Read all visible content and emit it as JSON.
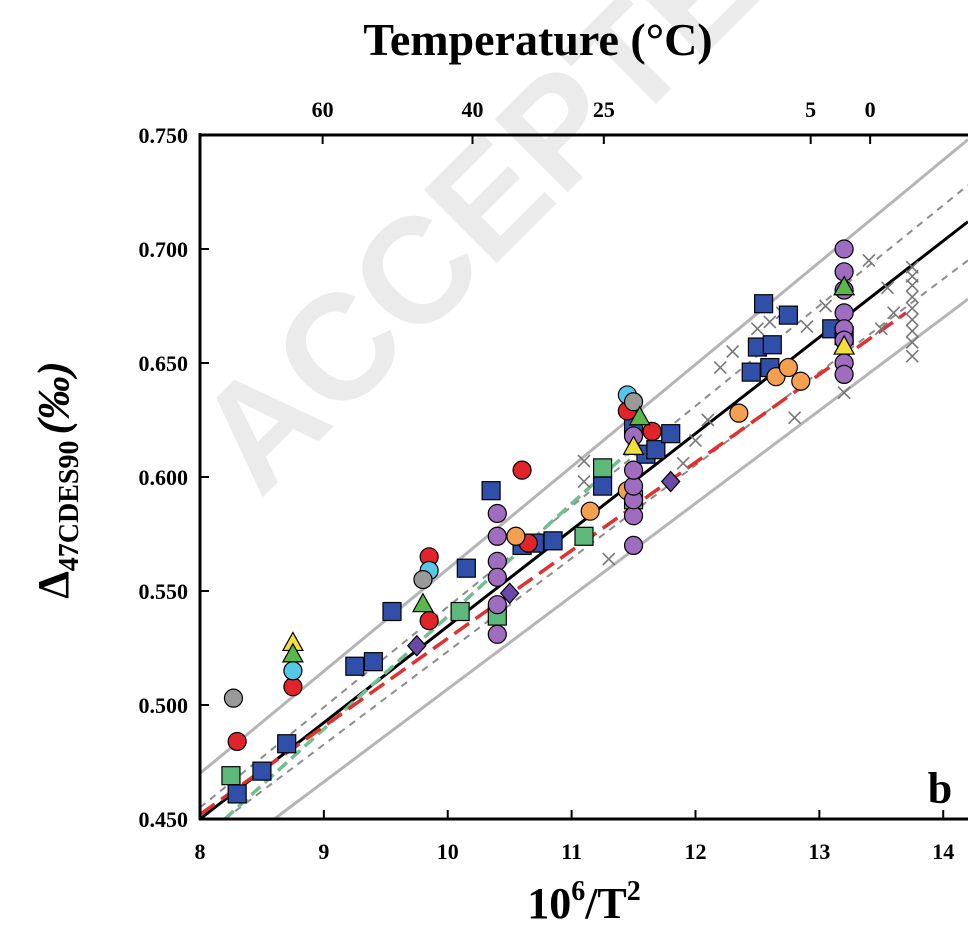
{
  "chart_data": {
    "type": "scatter",
    "panel_label": "b",
    "watermark": "ACCEPTED",
    "top_axis_title": "Temperature (°C)",
    "top_ticks": [
      {
        "label": "60",
        "x": 8.99
      },
      {
        "label": "40",
        "x": 10.2
      },
      {
        "label": "25",
        "x": 11.26
      },
      {
        "label": "5",
        "x": 12.93
      },
      {
        "label": "0",
        "x": 13.41
      }
    ],
    "ylabel_main": "Δ",
    "ylabel_sub": "47CDES90",
    "ylabel_units": "(‰)",
    "xlabel_base": "10",
    "xlabel_sup1": "6",
    "xlabel_mid": "/T",
    "xlabel_sup2": "2",
    "xlim": [
      8,
      14.2
    ],
    "ylim": [
      0.45,
      0.75
    ],
    "xticks": [
      {
        "label": "8",
        "v": 8
      },
      {
        "label": "9",
        "v": 9
      },
      {
        "label": "10",
        "v": 10
      },
      {
        "label": "11",
        "v": 11
      },
      {
        "label": "12",
        "v": 12
      },
      {
        "label": "13",
        "v": 13
      },
      {
        "label": "14",
        "v": 14
      }
    ],
    "yticks": [
      {
        "label": "0.450",
        "v": 0.45
      },
      {
        "label": "0.500",
        "v": 0.5
      },
      {
        "label": "0.550",
        "v": 0.55
      },
      {
        "label": "0.600",
        "v": 0.6
      },
      {
        "label": "0.650",
        "v": 0.65
      },
      {
        "label": "0.700",
        "v": 0.7
      },
      {
        "label": "0.750",
        "v": 0.75
      }
    ],
    "lines": [
      {
        "style": "gray-solid",
        "color": "#b5b5b5",
        "dash": "",
        "width": 3,
        "x1": 8.0,
        "y1": 0.47,
        "x2": 14.2,
        "y2": 0.748
      },
      {
        "style": "gray-solid",
        "color": "#b5b5b5",
        "dash": "",
        "width": 3,
        "x1": 8.6,
        "y1": 0.45,
        "x2": 14.2,
        "y2": 0.678
      },
      {
        "style": "gray-dashed",
        "color": "#8c8c8c",
        "dash": "7,6",
        "width": 2,
        "x1": 8.0,
        "y1": 0.455,
        "x2": 14.2,
        "y2": 0.728
      },
      {
        "style": "gray-dashed",
        "color": "#8c8c8c",
        "dash": "7,6",
        "width": 2,
        "x1": 8.2,
        "y1": 0.45,
        "x2": 14.2,
        "y2": 0.695
      },
      {
        "style": "black-solid",
        "color": "#000000",
        "dash": "",
        "width": 3,
        "x1": 8.0,
        "y1": 0.45,
        "x2": 14.2,
        "y2": 0.712
      },
      {
        "style": "green-dashed",
        "color": "#6fbf8f",
        "dash": "12,6",
        "width": 3.5,
        "x1": 8.2,
        "y1": 0.45,
        "x2": 11.5,
        "y2": 0.613
      },
      {
        "style": "red-dashed",
        "color": "#e03030",
        "dash": "18,8",
        "width": 3.5,
        "x1": 8.0,
        "y1": 0.452,
        "x2": 13.7,
        "y2": 0.672
      }
    ],
    "series": [
      {
        "marker": "cross",
        "color": "#777777",
        "points": [
          [
            11.3,
            0.564
          ],
          [
            11.1,
            0.607
          ],
          [
            11.1,
            0.598
          ],
          [
            11.5,
            0.612
          ],
          [
            11.9,
            0.606
          ],
          [
            12.0,
            0.616
          ],
          [
            12.1,
            0.625
          ],
          [
            12.2,
            0.648
          ],
          [
            12.3,
            0.655
          ],
          [
            12.5,
            0.665
          ],
          [
            12.6,
            0.668
          ],
          [
            12.7,
            0.672
          ],
          [
            12.9,
            0.666
          ],
          [
            12.8,
            0.626
          ],
          [
            13.2,
            0.637
          ],
          [
            13.4,
            0.695
          ],
          [
            13.5,
            0.665
          ],
          [
            13.6,
            0.672
          ],
          [
            13.55,
            0.683
          ],
          [
            13.75,
            0.692
          ],
          [
            13.75,
            0.688
          ],
          [
            13.75,
            0.684
          ],
          [
            13.75,
            0.679
          ],
          [
            13.75,
            0.674
          ],
          [
            13.75,
            0.669
          ],
          [
            13.75,
            0.664
          ],
          [
            13.75,
            0.659
          ],
          [
            13.75,
            0.653
          ],
          [
            13.05,
            0.675
          ],
          [
            13.2,
            0.66
          ]
        ]
      },
      {
        "marker": "square",
        "color": "#2f4fa8",
        "points": [
          [
            8.3,
            0.461
          ],
          [
            8.5,
            0.471
          ],
          [
            8.7,
            0.483
          ],
          [
            9.25,
            0.517
          ],
          [
            9.4,
            0.519
          ],
          [
            9.55,
            0.541
          ],
          [
            10.15,
            0.56
          ],
          [
            10.35,
            0.594
          ],
          [
            10.6,
            0.57
          ],
          [
            10.7,
            0.571
          ],
          [
            10.85,
            0.572
          ],
          [
            11.25,
            0.596
          ],
          [
            11.5,
            0.622
          ],
          [
            11.6,
            0.61
          ],
          [
            11.68,
            0.612
          ],
          [
            11.8,
            0.619
          ],
          [
            12.45,
            0.646
          ],
          [
            12.5,
            0.657
          ],
          [
            12.55,
            0.676
          ],
          [
            12.6,
            0.648
          ],
          [
            12.62,
            0.658
          ],
          [
            12.75,
            0.671
          ],
          [
            13.1,
            0.665
          ],
          [
            13.2,
            0.662
          ]
        ]
      },
      {
        "marker": "square",
        "color": "#5db87a",
        "points": [
          [
            8.25,
            0.469
          ],
          [
            10.1,
            0.541
          ],
          [
            10.4,
            0.539
          ],
          [
            11.1,
            0.574
          ],
          [
            11.25,
            0.604
          ],
          [
            11.5,
            0.59
          ]
        ]
      },
      {
        "marker": "circle",
        "color": "#e0242a",
        "points": [
          [
            8.3,
            0.484
          ],
          [
            8.75,
            0.508
          ],
          [
            9.85,
            0.537
          ],
          [
            9.85,
            0.565
          ],
          [
            10.6,
            0.603
          ],
          [
            10.65,
            0.571
          ],
          [
            11.45,
            0.629
          ],
          [
            11.65,
            0.62
          ]
        ]
      },
      {
        "marker": "circle",
        "color": "#f5a050",
        "points": [
          [
            10.55,
            0.574
          ],
          [
            11.15,
            0.585
          ],
          [
            11.45,
            0.594
          ],
          [
            12.35,
            0.628
          ],
          [
            12.65,
            0.644
          ],
          [
            12.75,
            0.648
          ],
          [
            12.85,
            0.642
          ]
        ]
      },
      {
        "marker": "circle",
        "color": "#a06cc0",
        "points": [
          [
            10.4,
            0.584
          ],
          [
            10.4,
            0.574
          ],
          [
            10.4,
            0.563
          ],
          [
            10.4,
            0.556
          ],
          [
            10.4,
            0.544
          ],
          [
            10.4,
            0.531
          ],
          [
            11.5,
            0.57
          ],
          [
            11.5,
            0.583
          ],
          [
            11.5,
            0.59
          ],
          [
            11.5,
            0.596
          ],
          [
            11.5,
            0.603
          ],
          [
            11.5,
            0.618
          ],
          [
            13.2,
            0.7
          ],
          [
            13.2,
            0.69
          ],
          [
            13.2,
            0.682
          ],
          [
            13.2,
            0.672
          ],
          [
            13.2,
            0.665
          ],
          [
            13.2,
            0.66
          ],
          [
            13.2,
            0.65
          ],
          [
            13.2,
            0.645
          ]
        ]
      },
      {
        "marker": "circle",
        "color": "#55c8e8",
        "points": [
          [
            8.75,
            0.515
          ],
          [
            9.85,
            0.559
          ],
          [
            11.45,
            0.636
          ]
        ]
      },
      {
        "marker": "circle",
        "color": "#999999",
        "points": [
          [
            8.27,
            0.503
          ],
          [
            9.8,
            0.555
          ],
          [
            11.5,
            0.633
          ]
        ]
      },
      {
        "marker": "triangle",
        "color": "#f2e03a",
        "points": [
          [
            8.75,
            0.527
          ],
          [
            11.5,
            0.613
          ],
          [
            13.2,
            0.657
          ]
        ]
      },
      {
        "marker": "triangle",
        "color": "#5ab84a",
        "points": [
          [
            8.75,
            0.522
          ],
          [
            9.8,
            0.544
          ],
          [
            11.55,
            0.626
          ],
          [
            13.2,
            0.683
          ]
        ]
      },
      {
        "marker": "diamond",
        "color": "#6a4aa8",
        "points": [
          [
            9.75,
            0.526
          ],
          [
            10.5,
            0.549
          ],
          [
            11.8,
            0.598
          ]
        ]
      }
    ]
  }
}
